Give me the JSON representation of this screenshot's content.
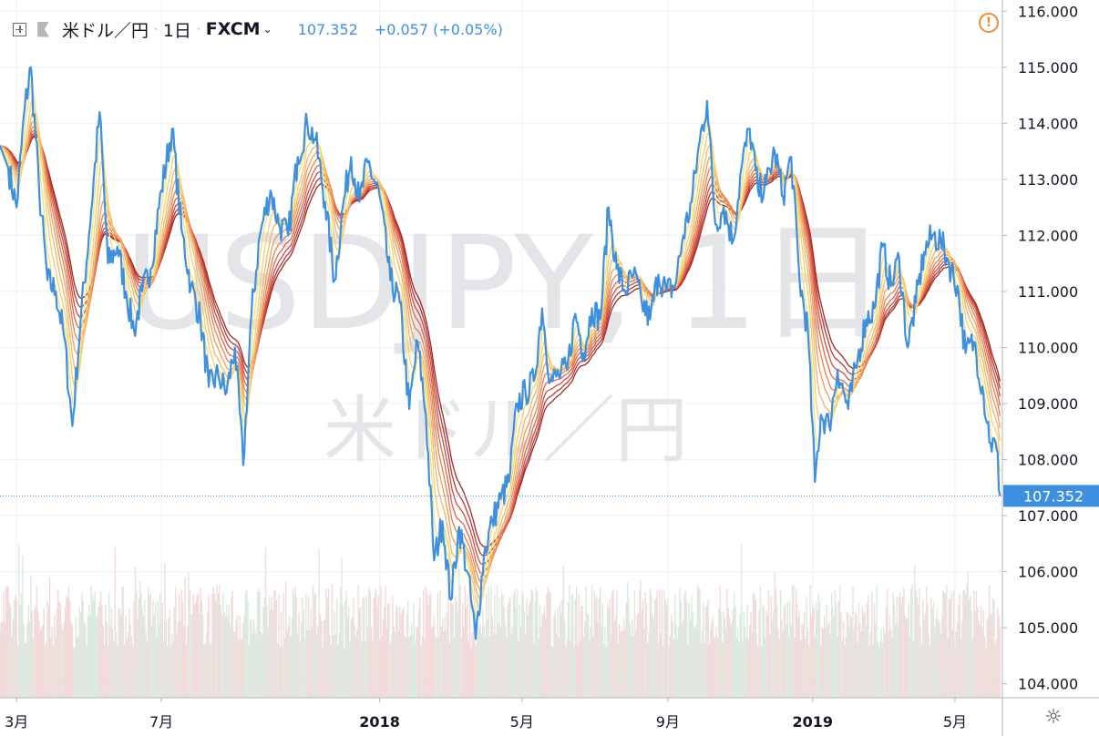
{
  "toolbar": {
    "symbol": "米ドル／円",
    "interval": "1日",
    "exchange": "FXCM",
    "last_price": "107.352",
    "change": "+0.057 (+0.05%)"
  },
  "watermark": {
    "ticker": "USDJPY, 1日",
    "name": "米ドル／円"
  },
  "icons": {
    "add": "plus-box-icon",
    "flag": "flag-icon",
    "alert": "alert-circle-icon",
    "settings": "gear-icon"
  },
  "colors": {
    "price_line": "#3d8fe0",
    "ribbon": [
      "#f7e07a",
      "#f6cf6e",
      "#f3b765",
      "#f09c5b",
      "#ea8052",
      "#df654a",
      "#cf4c3f",
      "#b83a33",
      "#9c2a26"
    ],
    "volume_up": "#dce9de",
    "volume_down": "#f3dada",
    "grid": "#eef0f3",
    "axis_text": "#131722"
  },
  "chart_data": {
    "type": "line",
    "title": "米ドル／円, 1日, FXCM",
    "x_axis": {
      "ticks": [
        "3月",
        "7月",
        "2018",
        "5月",
        "9月",
        "2019",
        "5月"
      ],
      "tick_dates": [
        "2017-03-01",
        "2017-07-01",
        "2018-01-01",
        "2018-05-01",
        "2018-09-01",
        "2019-01-01",
        "2019-05-01"
      ],
      "range": [
        "2017-02-15",
        "2019-06-10"
      ]
    },
    "y_axis": {
      "ticks": [
        104.0,
        105.0,
        106.0,
        107.0,
        108.0,
        109.0,
        110.0,
        111.0,
        112.0,
        113.0,
        114.0,
        115.0,
        116.0
      ],
      "range": [
        103.75,
        116.2
      ],
      "position": "right",
      "current_value_label": "107.352"
    },
    "grid": true,
    "series": [
      {
        "name": "米ドル／円",
        "kind": "close",
        "points": [
          [
            "2017-02-15",
            113.6
          ],
          [
            "2017-02-22",
            113.2
          ],
          [
            "2017-03-01",
            112.5
          ],
          [
            "2017-03-08",
            114.3
          ],
          [
            "2017-03-13",
            115.0
          ],
          [
            "2017-03-20",
            112.8
          ],
          [
            "2017-03-27",
            111.2
          ],
          [
            "2017-04-03",
            111.0
          ],
          [
            "2017-04-10",
            110.2
          ],
          [
            "2017-04-17",
            108.6
          ],
          [
            "2017-04-24",
            110.5
          ],
          [
            "2017-05-01",
            112.0
          ],
          [
            "2017-05-10",
            114.2
          ],
          [
            "2017-05-17",
            111.5
          ],
          [
            "2017-05-25",
            111.8
          ],
          [
            "2017-06-01",
            111.0
          ],
          [
            "2017-06-08",
            110.3
          ],
          [
            "2017-06-15",
            111.0
          ],
          [
            "2017-06-22",
            111.4
          ],
          [
            "2017-07-01",
            112.8
          ],
          [
            "2017-07-10",
            113.9
          ],
          [
            "2017-07-18",
            112.1
          ],
          [
            "2017-07-26",
            111.1
          ],
          [
            "2017-08-03",
            110.5
          ],
          [
            "2017-08-10",
            109.3
          ],
          [
            "2017-08-18",
            109.5
          ],
          [
            "2017-08-25",
            109.2
          ],
          [
            "2017-09-01",
            110.0
          ],
          [
            "2017-09-08",
            107.9
          ],
          [
            "2017-09-15",
            110.6
          ],
          [
            "2017-09-22",
            112.0
          ],
          [
            "2017-10-01",
            112.8
          ],
          [
            "2017-10-08",
            112.2
          ],
          [
            "2017-10-16",
            112.0
          ],
          [
            "2017-10-24",
            113.4
          ],
          [
            "2017-11-01",
            114.0
          ],
          [
            "2017-11-08",
            113.7
          ],
          [
            "2017-11-16",
            112.6
          ],
          [
            "2017-11-24",
            111.2
          ],
          [
            "2017-12-01",
            112.5
          ],
          [
            "2017-12-08",
            113.4
          ],
          [
            "2017-12-15",
            112.6
          ],
          [
            "2017-12-22",
            113.3
          ],
          [
            "2018-01-01",
            112.7
          ],
          [
            "2018-01-10",
            111.2
          ],
          [
            "2018-01-18",
            110.8
          ],
          [
            "2018-01-26",
            108.9
          ],
          [
            "2018-02-02",
            110.1
          ],
          [
            "2018-02-09",
            108.8
          ],
          [
            "2018-02-16",
            106.2
          ],
          [
            "2018-02-23",
            106.9
          ],
          [
            "2018-03-02",
            105.5
          ],
          [
            "2018-03-09",
            106.8
          ],
          [
            "2018-03-16",
            106.0
          ],
          [
            "2018-03-23",
            104.8
          ],
          [
            "2018-03-30",
            106.3
          ],
          [
            "2018-04-06",
            106.9
          ],
          [
            "2018-04-13",
            107.3
          ],
          [
            "2018-04-20",
            107.6
          ],
          [
            "2018-04-27",
            109.0
          ],
          [
            "2018-05-04",
            109.2
          ],
          [
            "2018-05-11",
            109.4
          ],
          [
            "2018-05-18",
            110.7
          ],
          [
            "2018-05-25",
            109.4
          ],
          [
            "2018-06-01",
            109.5
          ],
          [
            "2018-06-08",
            109.6
          ],
          [
            "2018-06-15",
            110.6
          ],
          [
            "2018-06-22",
            109.9
          ],
          [
            "2018-06-29",
            110.7
          ],
          [
            "2018-07-06",
            110.5
          ],
          [
            "2018-07-13",
            112.5
          ],
          [
            "2018-07-20",
            111.4
          ],
          [
            "2018-07-27",
            111.0
          ],
          [
            "2018-08-03",
            111.3
          ],
          [
            "2018-08-10",
            110.8
          ],
          [
            "2018-08-17",
            110.5
          ],
          [
            "2018-08-24",
            111.3
          ],
          [
            "2018-08-31",
            111.0
          ],
          [
            "2018-09-07",
            111.1
          ],
          [
            "2018-09-14",
            112.0
          ],
          [
            "2018-09-21",
            112.6
          ],
          [
            "2018-09-28",
            113.7
          ],
          [
            "2018-10-04",
            114.4
          ],
          [
            "2018-10-11",
            112.2
          ],
          [
            "2018-10-18",
            112.5
          ],
          [
            "2018-10-26",
            111.9
          ],
          [
            "2018-11-02",
            113.2
          ],
          [
            "2018-11-09",
            113.9
          ],
          [
            "2018-11-16",
            112.8
          ],
          [
            "2018-11-23",
            112.9
          ],
          [
            "2018-11-30",
            113.5
          ],
          [
            "2018-12-07",
            112.7
          ],
          [
            "2018-12-14",
            113.4
          ],
          [
            "2018-12-21",
            111.2
          ],
          [
            "2018-12-28",
            110.3
          ],
          [
            "2019-01-03",
            107.6
          ],
          [
            "2019-01-08",
            108.8
          ],
          [
            "2019-01-15",
            108.6
          ],
          [
            "2019-01-22",
            109.6
          ],
          [
            "2019-01-31",
            108.9
          ],
          [
            "2019-02-08",
            109.8
          ],
          [
            "2019-02-15",
            110.5
          ],
          [
            "2019-02-22",
            110.7
          ],
          [
            "2019-03-01",
            111.8
          ],
          [
            "2019-03-08",
            111.1
          ],
          [
            "2019-03-15",
            111.6
          ],
          [
            "2019-03-22",
            110.0
          ],
          [
            "2019-03-29",
            110.8
          ],
          [
            "2019-04-05",
            111.7
          ],
          [
            "2019-04-12",
            112.0
          ],
          [
            "2019-04-19",
            111.9
          ],
          [
            "2019-04-26",
            111.5
          ],
          [
            "2019-05-03",
            111.1
          ],
          [
            "2019-05-10",
            109.9
          ],
          [
            "2019-05-17",
            110.1
          ],
          [
            "2019-05-24",
            109.3
          ],
          [
            "2019-05-31",
            108.3
          ],
          [
            "2019-06-05",
            108.2
          ],
          [
            "2019-06-08",
            107.352
          ]
        ]
      },
      {
        "name": "",
        "kind": "ema_ribbon",
        "periods": [
          5,
          10,
          15,
          20,
          25,
          30,
          35,
          40,
          45
        ]
      },
      {
        "name": "",
        "kind": "volume"
      }
    ]
  }
}
